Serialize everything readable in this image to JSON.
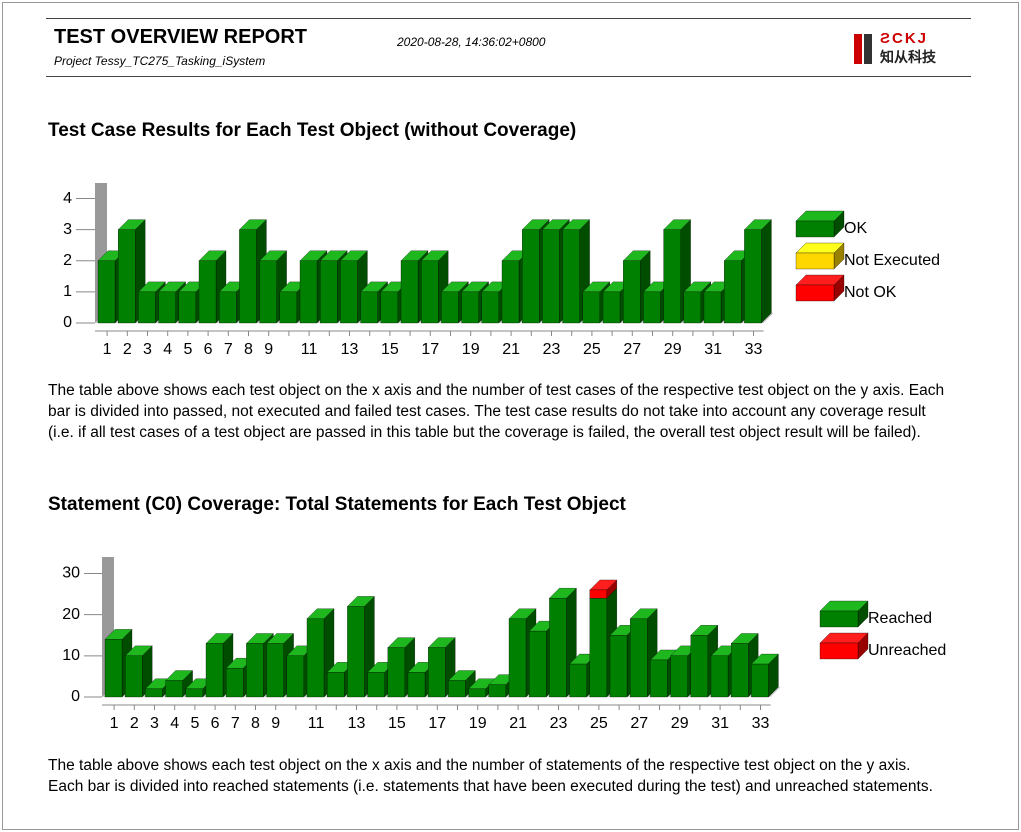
{
  "header": {
    "title": "TEST OVERVIEW REPORT",
    "project": "Project Tessy_TC275_Tasking_iSystem",
    "date": "2020-08-28, 14:36:02+0800",
    "logo_text": "知从科技"
  },
  "chart_data": [
    {
      "type": "bar3d",
      "title": "Test Case Results for Each Test Object (without Coverage)",
      "categories": [
        "1",
        "2",
        "3",
        "4",
        "5",
        "6",
        "7",
        "8",
        "9",
        null,
        "11",
        null,
        "13",
        null,
        "15",
        null,
        "17",
        null,
        "19",
        null,
        "21",
        null,
        "23",
        null,
        "25",
        null,
        "27",
        null,
        "29",
        null,
        "31",
        null,
        "33"
      ],
      "series": [
        {
          "name": "OK",
          "color": "#008000",
          "values": [
            2,
            3,
            1,
            1,
            1,
            2,
            1,
            3,
            2,
            1,
            2,
            2,
            2,
            1,
            1,
            2,
            2,
            1,
            1,
            1,
            2,
            3,
            3,
            3,
            1,
            1,
            2,
            1,
            3,
            1,
            1,
            2,
            3
          ]
        },
        {
          "name": "Not Executed",
          "color": "#ffd700",
          "values": [
            0,
            0,
            0,
            0,
            0,
            0,
            0,
            0,
            0,
            0,
            0,
            0,
            0,
            0,
            0,
            0,
            0,
            0,
            0,
            0,
            0,
            0,
            0,
            0,
            0,
            0,
            0,
            0,
            0,
            0,
            0,
            0,
            0
          ]
        },
        {
          "name": "Not OK",
          "color": "#ff0000",
          "values": [
            0,
            0,
            0,
            0,
            0,
            0,
            0,
            0,
            0,
            0,
            0,
            0,
            0,
            0,
            0,
            0,
            0,
            0,
            0,
            0,
            0,
            0,
            0,
            0,
            0,
            0,
            0,
            0,
            0,
            0,
            0,
            0,
            0
          ]
        }
      ],
      "ylim": [
        0,
        4.5
      ],
      "yticks": [
        0,
        1,
        2,
        3,
        4
      ],
      "stacked": true,
      "description": "The table above shows each test object on the x axis and the number of test cases of the respective test object on the y axis. Each bar is divided into passed, not executed and failed test cases. The test case results do not take into account any coverage result (i.e. if all test cases of a test object are passed in this table but the coverage is failed, the overall test object result will be failed)."
    },
    {
      "type": "bar3d",
      "title": "Statement (C0) Coverage: Total Statements for Each Test Object",
      "categories": [
        "1",
        "2",
        "3",
        "4",
        "5",
        "6",
        "7",
        "8",
        "9",
        null,
        "11",
        null,
        "13",
        null,
        "15",
        null,
        "17",
        null,
        "19",
        null,
        "21",
        null,
        "23",
        null,
        "25",
        null,
        "27",
        null,
        "29",
        null,
        "31",
        null,
        "33"
      ],
      "series": [
        {
          "name": "Reached",
          "color": "#008000",
          "values": [
            14,
            10,
            2,
            4,
            2,
            13,
            7,
            13,
            13,
            10,
            19,
            6,
            22,
            6,
            12,
            6,
            12,
            4,
            2,
            3,
            19,
            16,
            24,
            8,
            24,
            15,
            19,
            9,
            10,
            15,
            10,
            13,
            8
          ]
        },
        {
          "name": "Unreached",
          "color": "#ff0000",
          "values": [
            0,
            0,
            0,
            0,
            0,
            0,
            0,
            0,
            0,
            0,
            0,
            0,
            0,
            0,
            0,
            0,
            0,
            0,
            0,
            0,
            0,
            0,
            0,
            0,
            2,
            0,
            0,
            0,
            0,
            0,
            0,
            0,
            0
          ]
        }
      ],
      "ylim": [
        0,
        34
      ],
      "yticks": [
        0,
        10,
        20,
        30
      ],
      "stacked": true,
      "description": "The table above shows each test object on the x axis and the number of statements of the respective test object on the y axis. Each bar is divided into reached statements (i.e. statements that have been executed during the test) and unreached statements."
    }
  ]
}
